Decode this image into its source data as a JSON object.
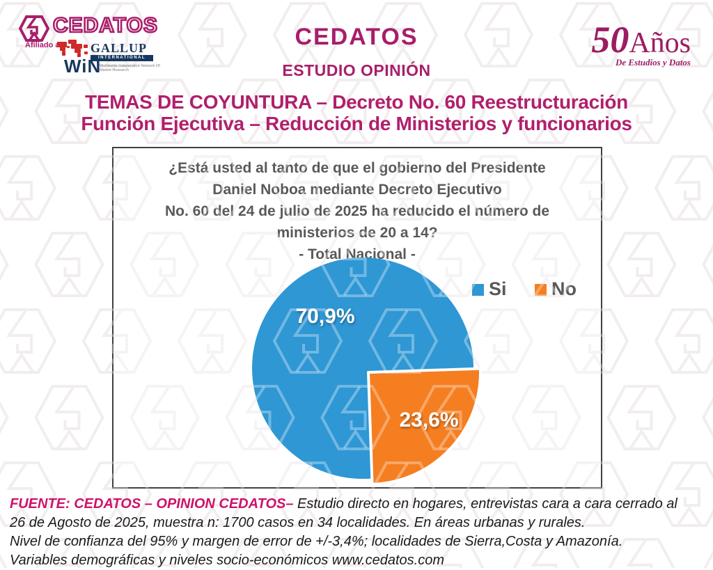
{
  "brand": {
    "logo_text": "CEDATOS",
    "affiliation_label": "Afiliado a:",
    "gallup_word": "GALLUP",
    "gallup_sub": "INTERNATIONAL",
    "win_word": "WiN",
    "win_tagline": "Worldwide Independent Network Of Market Research",
    "anniversary_number": "50",
    "anniversary_word": "Años",
    "anniversary_sub": "De Estudios y Datos",
    "brand_color": "#a81e6a"
  },
  "header": {
    "title": "CEDATOS",
    "subtitle": "ESTUDIO OPINIÓN",
    "headline_line1": "TEMAS DE COYUNTURA – Decreto No. 60 Reestructuración",
    "headline_line2": "Función Ejecutiva – Reducción de Ministerios y funcionarios"
  },
  "chart_data": {
    "type": "pie",
    "title_lines": [
      "¿Está usted al tanto de que el gobierno del Presidente",
      "Daniel Noboa mediante Decreto Ejecutivo",
      "No. 60 del 24 de julio de 2025 ha reducido el número de",
      "ministerios de 20 a 14?",
      "- Total Nacional -"
    ],
    "categories": [
      "Si",
      "No"
    ],
    "values": [
      70.9,
      23.6
    ],
    "labels": [
      "70,9%",
      "23,6%"
    ],
    "colors": {
      "si": "#2e97d4",
      "no": "#f57e20"
    },
    "legend_position": "right",
    "label_text_color": "#ffffff"
  },
  "footer": {
    "source_label": "FUENTE: CEDATOS – OPINION CEDATOS–",
    "line1_rest": " Estudio directo en hogares, entrevistas cara a cara cerrado al",
    "line2": "26 de Agosto de 2025, muestra n: 1700 casos en 34 localidades. En áreas urbanas y rurales.",
    "line3": "Nivel de confianza del 95% y margen de error de +/-3,4%; localidades de Sierra,Costa y Amazonía.",
    "line4": "Variables demográficas y niveles socio-económicos  www.cedatos.com"
  }
}
